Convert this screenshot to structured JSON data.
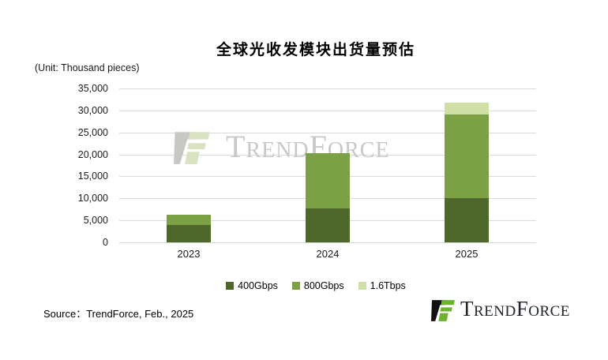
{
  "title": "全球光收发模块出货量预估",
  "unit_label": "(Unit: Thousand pieces)",
  "source_note": "Source：TrendForce,  Feb.,  2025",
  "watermark": {
    "text": "TrendForce"
  },
  "footer_logo": {
    "text": "TrendForce"
  },
  "colors": {
    "series_400g": "#4e672b",
    "series_800g": "#7ba045",
    "series_16t": "#cfdfa5",
    "gridline": "#d9d9d9",
    "watermark_gray": "#c7c7c4",
    "watermark_green": "#d9e3c1",
    "logo_black": "#111111",
    "logo_green": "#6fb230"
  },
  "chart_data": {
    "type": "bar",
    "stacked": true,
    "title": "全球光收发模块出货量预估",
    "ylabel": "(Unit: Thousand pieces)",
    "categories": [
      "2023",
      "2024",
      "2025"
    ],
    "series": [
      {
        "name": "400Gbps",
        "color": "#4e672b",
        "values": [
          4000,
          7800,
          10000
        ]
      },
      {
        "name": "800Gbps",
        "color": "#7ba045",
        "values": [
          2200,
          12500,
          19100
        ]
      },
      {
        "name": "1.6Tbps",
        "color": "#cfdfa5",
        "values": [
          0,
          0,
          2700
        ]
      }
    ],
    "totals": [
      6200,
      20300,
      31800
    ],
    "ylim": [
      0,
      35000
    ],
    "ytick_interval": 5000,
    "yticks": [
      "0",
      "5,000",
      "10,000",
      "15,000",
      "20,000",
      "25,000",
      "30,000",
      "35,000"
    ],
    "grid": true,
    "legend_position": "bottom"
  }
}
